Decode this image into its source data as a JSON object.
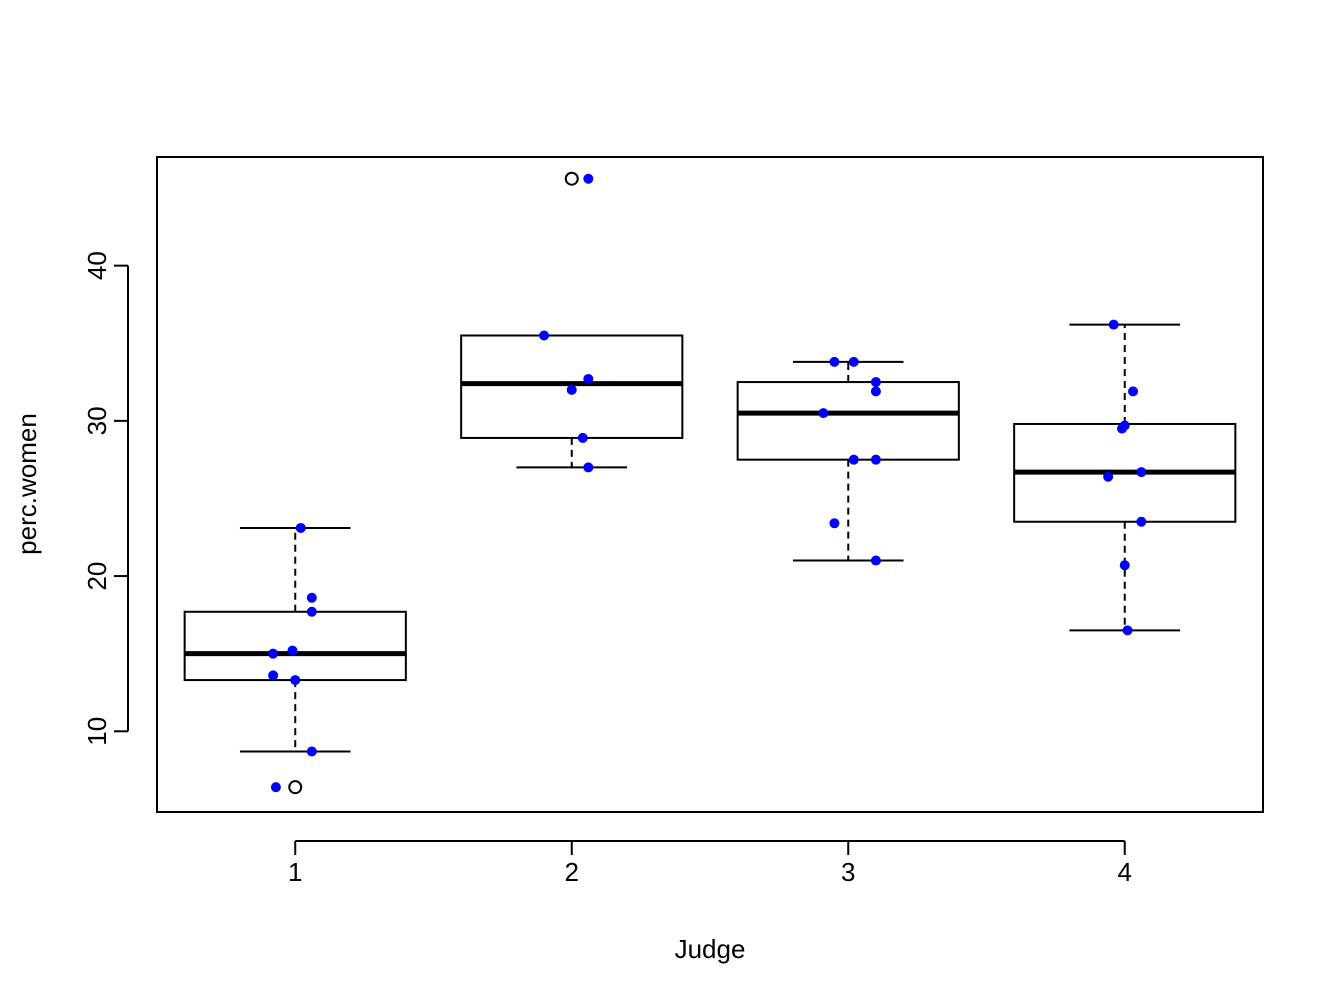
{
  "chart_data": {
    "type": "boxplot",
    "title": "",
    "xlabel": "Judge",
    "ylabel": "perc.women",
    "categories": [
      "1",
      "2",
      "3",
      "4"
    ],
    "ylim": [
      4.8,
      47
    ],
    "yticks": [
      10,
      20,
      30,
      40
    ],
    "boxes": [
      {
        "name": "1",
        "whisker_low": 8.7,
        "q1": 13.3,
        "median": 15.0,
        "q3": 17.7,
        "whisker_high": 23.1,
        "outliers": [
          6.4
        ]
      },
      {
        "name": "2",
        "whisker_low": 27.0,
        "q1": 28.9,
        "median": 32.4,
        "q3": 35.5,
        "whisker_high": 35.5,
        "outliers": [
          45.6
        ]
      },
      {
        "name": "3",
        "whisker_low": 21.0,
        "q1": 27.5,
        "median": 30.5,
        "q3": 32.5,
        "whisker_high": 33.8,
        "outliers": []
      },
      {
        "name": "4",
        "whisker_low": 16.5,
        "q1": 23.5,
        "median": 26.7,
        "q3": 29.8,
        "whisker_high": 36.2,
        "outliers": []
      }
    ],
    "points": [
      {
        "group": "1",
        "values": [
          {
            "jitter": 0.02,
            "y": 23.1
          },
          {
            "jitter": 0.06,
            "y": 18.6
          },
          {
            "jitter": 0.06,
            "y": 17.7
          },
          {
            "jitter": -0.08,
            "y": 15.0
          },
          {
            "jitter": -0.01,
            "y": 15.2
          },
          {
            "jitter": -0.08,
            "y": 13.6
          },
          {
            "jitter": 0.0,
            "y": 13.3
          },
          {
            "jitter": 0.06,
            "y": 8.7
          },
          {
            "jitter": -0.07,
            "y": 6.4
          }
        ]
      },
      {
        "group": "2",
        "values": [
          {
            "jitter": 0.06,
            "y": 45.6
          },
          {
            "jitter": -0.1,
            "y": 35.5
          },
          {
            "jitter": 0.06,
            "y": 32.7
          },
          {
            "jitter": 0.0,
            "y": 32.0
          },
          {
            "jitter": 0.04,
            "y": 28.9
          },
          {
            "jitter": 0.06,
            "y": 27.0
          }
        ]
      },
      {
        "group": "3",
        "values": [
          {
            "jitter": -0.05,
            "y": 33.8
          },
          {
            "jitter": 0.02,
            "y": 33.8
          },
          {
            "jitter": 0.1,
            "y": 32.5
          },
          {
            "jitter": 0.1,
            "y": 31.9
          },
          {
            "jitter": -0.09,
            "y": 30.5
          },
          {
            "jitter": 0.02,
            "y": 27.5
          },
          {
            "jitter": 0.1,
            "y": 27.5
          },
          {
            "jitter": -0.05,
            "y": 23.4
          },
          {
            "jitter": 0.1,
            "y": 21.0
          }
        ]
      },
      {
        "group": "4",
        "values": [
          {
            "jitter": -0.04,
            "y": 36.2
          },
          {
            "jitter": 0.03,
            "y": 31.9
          },
          {
            "jitter": 0.0,
            "y": 29.7
          },
          {
            "jitter": -0.01,
            "y": 29.5
          },
          {
            "jitter": 0.06,
            "y": 26.7
          },
          {
            "jitter": -0.06,
            "y": 26.4
          },
          {
            "jitter": 0.06,
            "y": 23.5
          },
          {
            "jitter": 0.0,
            "y": 20.7
          },
          {
            "jitter": 0.01,
            "y": 16.5
          }
        ]
      }
    ],
    "colors": {
      "points": "#0000ff",
      "lines": "#000000",
      "background": "#ffffff"
    }
  }
}
